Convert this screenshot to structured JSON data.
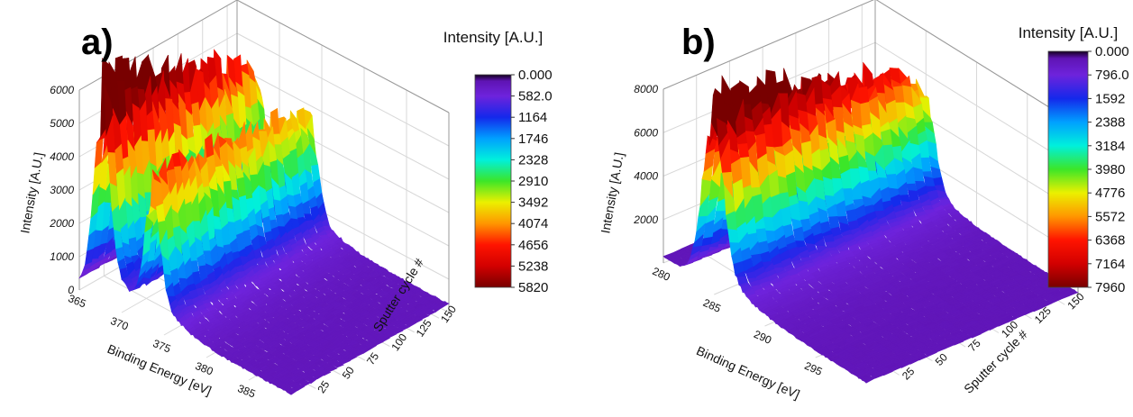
{
  "chart_data": [
    {
      "type": "3d-surface",
      "panel_label": "a)",
      "xlabel": "Binding Energy [eV]",
      "ylabel": "Sputter cycle #",
      "zlabel": "Intensity [A.U.]",
      "colorbar_title": "Intensity [A.U.]",
      "x_ticks": [
        "365",
        "370",
        "375",
        "380",
        "385"
      ],
      "y_ticks": [
        "25",
        "50",
        "75",
        "100",
        "125",
        "150"
      ],
      "z_ticks": [
        "0",
        "1000",
        "2000",
        "3000",
        "4000",
        "5000",
        "6000"
      ],
      "xlim": [
        365,
        390
      ],
      "ylim": [
        0,
        160
      ],
      "zlim": [
        0,
        6000
      ],
      "colorbar_ticks": [
        "0.000",
        "582.0",
        "1164",
        "1746",
        "2328",
        "2910",
        "3492",
        "4074",
        "4656",
        "5238",
        "5820"
      ],
      "colorbar_range": [
        0,
        5820
      ],
      "peaks_eV": [
        367.5,
        373.5
      ],
      "peak_heights": [
        5500,
        3500
      ],
      "background": 250
    },
    {
      "type": "3d-surface",
      "panel_label": "b)",
      "xlabel": "Binding Energy [eV]",
      "ylabel": "Sputter cycle #",
      "zlabel": "Intensity [A.U.]",
      "colorbar_title": "Intensity [A.U.]",
      "x_ticks": [
        "280",
        "285",
        "290",
        "295"
      ],
      "y_ticks": [
        "25",
        "50",
        "75",
        "100",
        "125",
        "150"
      ],
      "z_ticks": [
        "2000",
        "4000",
        "6000",
        "8000"
      ],
      "xlim": [
        280,
        300
      ],
      "ylim": [
        0,
        160
      ],
      "zlim": [
        0,
        8000
      ],
      "colorbar_ticks": [
        "0.000",
        "796.0",
        "1592",
        "2388",
        "3184",
        "3980",
        "4776",
        "5572",
        "6368",
        "7164",
        "7960"
      ],
      "colorbar_range": [
        0,
        7960
      ],
      "peaks_eV": [
        284.8
      ],
      "peak_heights": [
        7900
      ],
      "background": 300
    }
  ]
}
